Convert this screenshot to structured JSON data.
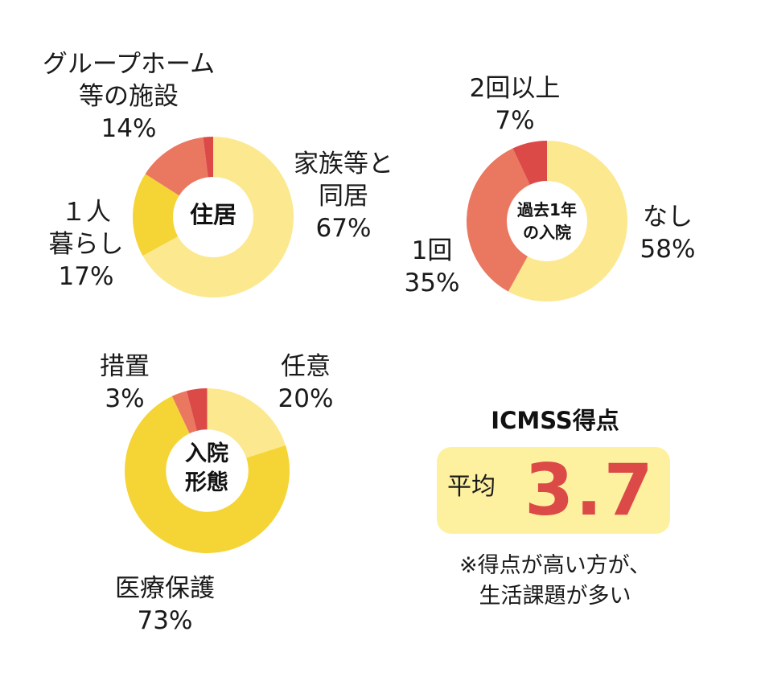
{
  "colors": {
    "pale_yellow": "#FCE88E",
    "yellow": "#F5D435",
    "salmon": "#EA7760",
    "red": "#DC4A48",
    "score_box": "#FDF1A0",
    "score_value": "#DC4A48"
  },
  "chart_data": [
    {
      "type": "donut",
      "center_label": [
        "住居"
      ],
      "slices": [
        {
          "label_lines": [
            "家族等と",
            "同居",
            "67%"
          ],
          "value": 67,
          "color": "pale_yellow"
        },
        {
          "label_lines": [
            "１人",
            "暮らし",
            "17%"
          ],
          "value": 17,
          "color": "yellow"
        },
        {
          "label_lines": [
            "グループホーム",
            "等の施設",
            "14%"
          ],
          "value": 14,
          "color": "salmon"
        },
        {
          "label_lines": [],
          "value": 2,
          "color": "red"
        }
      ]
    },
    {
      "type": "donut",
      "center_label": [
        "過去1年",
        "の入院"
      ],
      "slices": [
        {
          "label_lines": [
            "なし",
            "58%"
          ],
          "value": 58,
          "color": "pale_yellow"
        },
        {
          "label_lines": [
            "1回",
            "35%"
          ],
          "value": 35,
          "color": "salmon"
        },
        {
          "label_lines": [
            "2回以上",
            "7%"
          ],
          "value": 7,
          "color": "red"
        }
      ]
    },
    {
      "type": "donut",
      "center_label": [
        "入院",
        "形態"
      ],
      "slices": [
        {
          "label_lines": [
            "任意",
            "20%"
          ],
          "value": 20,
          "color": "pale_yellow"
        },
        {
          "label_lines": [
            "医療保護",
            "73%"
          ],
          "value": 73,
          "color": "yellow"
        },
        {
          "label_lines": [
            "措置",
            "3%"
          ],
          "value": 3,
          "color": "salmon"
        },
        {
          "label_lines": [],
          "value": 4,
          "color": "red"
        }
      ]
    }
  ],
  "score": {
    "title": "ICMSS得点",
    "prefix": "平均",
    "value": "3.7",
    "note_lines": [
      "※得点が高い方が、",
      "生活課題が多い"
    ]
  }
}
